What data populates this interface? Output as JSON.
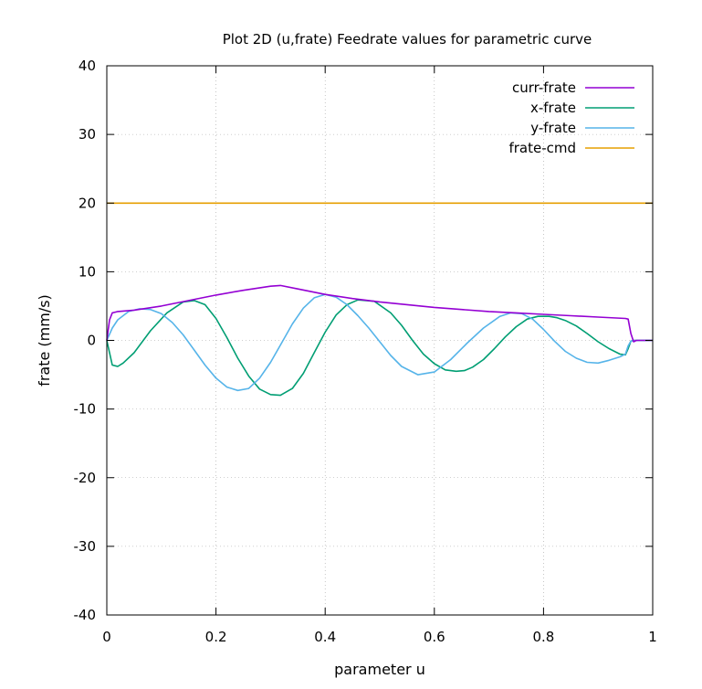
{
  "chart_data": {
    "type": "line",
    "title": "Plot 2D (u,frate) Feedrate values for parametric curve",
    "xlabel": "parameter u",
    "ylabel": "frate (mm/s)",
    "xlim": [
      0,
      1
    ],
    "ylim": [
      -40,
      40
    ],
    "x_ticks": [
      "0",
      "0.2",
      "0.4",
      "0.6",
      "0.8",
      "1"
    ],
    "y_ticks": [
      "-40",
      "-30",
      "-20",
      "-10",
      "0",
      "10",
      "20",
      "30",
      "40"
    ],
    "grid": true,
    "legend_position": "top-right",
    "series": [
      {
        "name": "curr-frate",
        "color": "#9400d3",
        "x": [
          0,
          0.005,
          0.01,
          0.02,
          0.05,
          0.1,
          0.15,
          0.2,
          0.25,
          0.3,
          0.318,
          0.35,
          0.4,
          0.45,
          0.5,
          0.55,
          0.6,
          0.65,
          0.7,
          0.75,
          0.8,
          0.85,
          0.9,
          0.95,
          0.955,
          0.96,
          0.965,
          0.97,
          0.98,
          1.0
        ],
        "y": [
          0,
          3.0,
          4.0,
          4.2,
          4.4,
          5.0,
          5.8,
          6.6,
          7.3,
          7.9,
          8.0,
          7.5,
          6.7,
          6.1,
          5.6,
          5.2,
          4.8,
          4.5,
          4.2,
          4.0,
          3.8,
          3.6,
          3.4,
          3.2,
          3.1,
          1.0,
          -0.2,
          0,
          0,
          0
        ]
      },
      {
        "name": "x-frate",
        "color": "#009e73",
        "x": [
          0,
          0.01,
          0.02,
          0.03,
          0.05,
          0.08,
          0.11,
          0.14,
          0.16,
          0.18,
          0.2,
          0.22,
          0.24,
          0.26,
          0.28,
          0.3,
          0.318,
          0.34,
          0.36,
          0.38,
          0.4,
          0.42,
          0.44,
          0.46,
          0.49,
          0.52,
          0.54,
          0.56,
          0.58,
          0.6,
          0.62,
          0.64,
          0.655,
          0.67,
          0.69,
          0.71,
          0.73,
          0.75,
          0.77,
          0.79,
          0.81,
          0.825,
          0.84,
          0.86,
          0.88,
          0.9,
          0.92,
          0.94,
          0.95,
          0.955,
          0.96,
          0.965,
          0.97,
          0.98,
          1.0
        ],
        "y": [
          0,
          -3.6,
          -3.8,
          -3.3,
          -1.8,
          1.4,
          4.0,
          5.6,
          5.8,
          5.2,
          3.2,
          0.4,
          -2.6,
          -5.2,
          -7.1,
          -7.9,
          -8.0,
          -7.0,
          -4.8,
          -1.8,
          1.2,
          3.7,
          5.2,
          5.9,
          5.7,
          4.0,
          2.2,
          0.0,
          -2.0,
          -3.4,
          -4.3,
          -4.5,
          -4.4,
          -3.9,
          -2.8,
          -1.2,
          0.5,
          2.0,
          3.1,
          3.5,
          3.5,
          3.3,
          2.9,
          2.1,
          1.0,
          -0.2,
          -1.2,
          -2.0,
          -2.1,
          -1.2,
          -0.1,
          0,
          0,
          0,
          0
        ]
      },
      {
        "name": "y-frate",
        "color": "#56b4e9",
        "x": [
          0,
          0.01,
          0.02,
          0.04,
          0.06,
          0.08,
          0.1,
          0.12,
          0.14,
          0.16,
          0.18,
          0.2,
          0.22,
          0.24,
          0.26,
          0.28,
          0.3,
          0.32,
          0.34,
          0.36,
          0.38,
          0.4,
          0.42,
          0.44,
          0.46,
          0.48,
          0.5,
          0.52,
          0.54,
          0.57,
          0.6,
          0.63,
          0.66,
          0.69,
          0.72,
          0.74,
          0.76,
          0.78,
          0.8,
          0.82,
          0.84,
          0.86,
          0.88,
          0.9,
          0.92,
          0.94,
          0.95,
          0.955,
          0.96,
          0.97,
          0.98,
          1.0
        ],
        "y": [
          0,
          1.8,
          3.0,
          4.2,
          4.6,
          4.5,
          3.9,
          2.6,
          0.8,
          -1.4,
          -3.6,
          -5.5,
          -6.8,
          -7.3,
          -7.0,
          -5.5,
          -3.2,
          -0.4,
          2.4,
          4.7,
          6.2,
          6.7,
          6.3,
          5.2,
          3.6,
          1.8,
          -0.2,
          -2.2,
          -3.8,
          -5.0,
          -4.6,
          -2.8,
          -0.4,
          1.8,
          3.5,
          4.0,
          3.9,
          3.1,
          1.6,
          -0.1,
          -1.6,
          -2.6,
          -3.2,
          -3.3,
          -2.9,
          -2.4,
          -2.0,
          -0.8,
          -0.1,
          0,
          0,
          0
        ]
      },
      {
        "name": "frate-cmd",
        "color": "#e69f00",
        "x": [
          0,
          1
        ],
        "y": [
          20,
          20
        ]
      }
    ]
  }
}
